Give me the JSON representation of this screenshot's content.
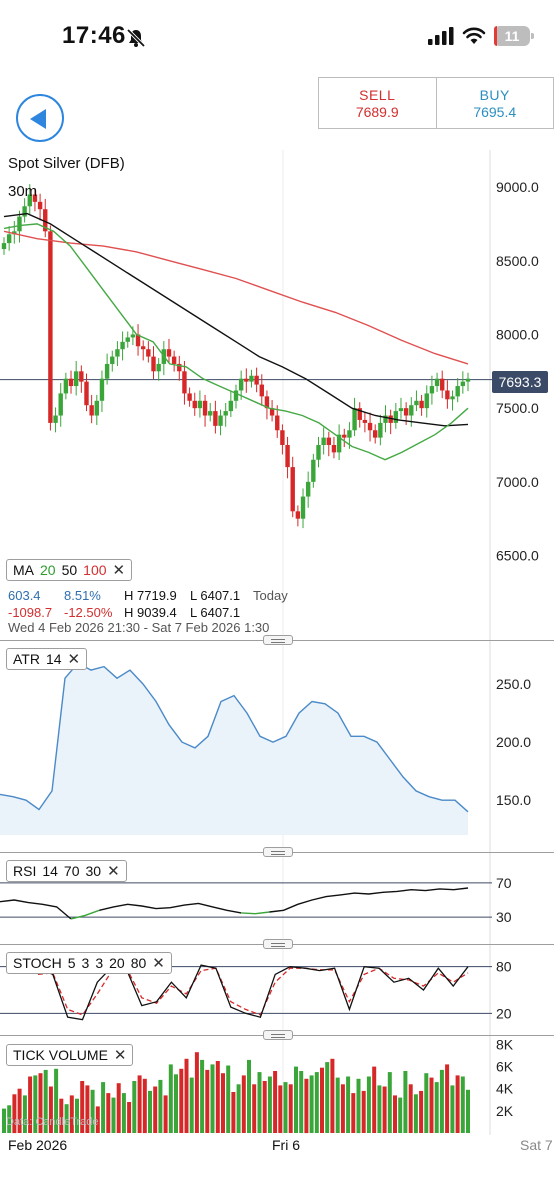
{
  "status_bar": {
    "time": "17:46",
    "battery": "11"
  },
  "trade": {
    "sell_label": "SELL",
    "sell_price": "7689.9",
    "buy_label": "BUY",
    "buy_price": "7695.4"
  },
  "instrument": {
    "name": "Spot Silver (DFB)",
    "timeframe": "30m"
  },
  "ma_legend": {
    "label": "MA",
    "p1": "20",
    "p2": "50",
    "p3": "100"
  },
  "stats": {
    "change": "603.4",
    "change_pct": "8.51%",
    "high_today": "H 7719.9",
    "low_today": "L 6407.1",
    "today": "Today",
    "change2": "-1098.7",
    "change2_pct": "-12.50%",
    "high_range": "H 9039.4",
    "low_range": "L 6407.1"
  },
  "range": "Wed 4 Feb 2026 21:30 - Sat 7 Feb 2026 1:30",
  "current_price": "7693.3",
  "x_labels": [
    "Feb 2026",
    "Fri 6",
    "Sat 7"
  ],
  "watermark": "Data: CandleTrade",
  "colors": {
    "up": "#3aa63a",
    "down": "#d62828",
    "ma20": "#44a944",
    "ma50": "#111111",
    "ma100": "#e05050",
    "atr": "#4a8ac8",
    "tick_price": "#3b4a66"
  },
  "chart_data": [
    {
      "type": "candlestick",
      "ylim": [
        6300,
        9150
      ],
      "yticks": [
        "9000.0",
        "8500.0",
        "8000.0",
        "7500.0",
        "7000.0",
        "6500.0"
      ],
      "ytick_values": [
        9000,
        8500,
        8000,
        7500,
        7000,
        6500
      ],
      "current": 7693.3,
      "close": [
        8620,
        8680,
        8700,
        8800,
        8870,
        8950,
        8900,
        8850,
        8700,
        7400,
        7450,
        7600,
        7700,
        7650,
        7750,
        7680,
        7520,
        7450,
        7550,
        7700,
        7800,
        7850,
        7900,
        7950,
        7980,
        8000,
        7920,
        7900,
        7850,
        7750,
        7800,
        7900,
        7850,
        7800,
        7750,
        7600,
        7550,
        7500,
        7550,
        7450,
        7480,
        7380,
        7450,
        7480,
        7550,
        7620,
        7700,
        7680,
        7720,
        7660,
        7580,
        7500,
        7450,
        7350,
        7250,
        7100,
        6800,
        6750,
        6900,
        7000,
        7150,
        7250,
        7300,
        7250,
        7200,
        7320,
        7300,
        7350,
        7500,
        7420,
        7400,
        7350,
        7300,
        7400,
        7450,
        7400,
        7480,
        7500,
        7450,
        7520,
        7550,
        7500,
        7600,
        7650,
        7700,
        7620,
        7560,
        7580,
        7650,
        7680,
        7700
      ],
      "ma20": [
        8720,
        8740,
        8750,
        8700,
        8600,
        8450,
        8300,
        8150,
        8000,
        7950,
        7800,
        7780,
        7700,
        7650,
        7600,
        7550,
        7500,
        7480,
        7450,
        7400,
        7320,
        7240,
        7200,
        7150,
        7200,
        7260,
        7320,
        7400,
        7500
      ],
      "ma50": [
        8800,
        8820,
        8750,
        8650,
        8550,
        8450,
        8350,
        8250,
        8150,
        8050,
        7950,
        7850,
        7780,
        7700,
        7600,
        7500,
        7450,
        7420,
        7400,
        7380,
        7390
      ],
      "ma100": [
        8700,
        8650,
        8620,
        8600,
        8560,
        8500,
        8440,
        8380,
        8300,
        8220,
        8150,
        8060,
        7960,
        7870,
        7800
      ],
      "ma_labels": [
        "20",
        "50",
        "100"
      ]
    },
    {
      "type": "area",
      "name": "ATR",
      "period": "14",
      "ylim": [
        120,
        275
      ],
      "yticks": [
        "250.0",
        "200.0",
        "150.0"
      ],
      "ytick_values": [
        250,
        200,
        150
      ],
      "values": [
        155,
        153,
        150,
        142,
        158,
        255,
        268,
        262,
        265,
        255,
        262,
        250,
        235,
        215,
        200,
        195,
        205,
        235,
        240,
        225,
        205,
        200,
        205,
        225,
        235,
        233,
        225,
        205,
        205,
        200,
        185,
        170,
        158,
        153,
        150,
        150,
        140
      ]
    },
    {
      "type": "line",
      "name": "RSI",
      "params": [
        "14",
        "70",
        "30"
      ],
      "ylim": [
        15,
        85
      ],
      "yticks": [
        "70",
        "30"
      ],
      "ytick_values": [
        70,
        30
      ],
      "values": [
        48,
        50,
        47,
        45,
        42,
        28,
        32,
        38,
        42,
        45,
        43,
        40,
        41,
        44,
        46,
        42,
        38,
        35,
        34,
        36,
        38,
        45,
        50,
        54,
        56,
        58,
        57,
        59,
        60,
        62,
        61,
        63,
        62,
        64
      ]
    },
    {
      "type": "line",
      "name": "STOCH",
      "params": [
        "5",
        "3",
        "3",
        "20",
        "80"
      ],
      "ylim": [
        5,
        95
      ],
      "yticks": [
        "80",
        "20"
      ],
      "ytick_values": [
        80,
        20
      ],
      "k": [
        78,
        70,
        15,
        12,
        60,
        80,
        75,
        30,
        35,
        60,
        40,
        82,
        78,
        28,
        20,
        15,
        70,
        80,
        78,
        75,
        78,
        25,
        80,
        78,
        60,
        65,
        50,
        78,
        55,
        80
      ],
      "d": [
        70,
        72,
        25,
        18,
        45,
        75,
        77,
        40,
        33,
        55,
        45,
        75,
        78,
        35,
        25,
        18,
        60,
        78,
        78,
        76,
        76,
        35,
        70,
        78,
        65,
        63,
        55,
        72,
        60,
        72
      ]
    },
    {
      "type": "bar",
      "name": "TICK VOLUME",
      "ylim": [
        0,
        8400
      ],
      "yticks": [
        "8K",
        "6K",
        "4K",
        "2K"
      ],
      "ytick_values": [
        8000,
        6000,
        4000,
        2000
      ],
      "values": [
        2200,
        2500,
        3500,
        4000,
        3400,
        5100,
        5200,
        5400,
        5700,
        4200,
        5800,
        3100,
        2600,
        3400,
        3100,
        4700,
        4300,
        3900,
        2400,
        4600,
        3600,
        3200,
        4500,
        3600,
        2800,
        4700,
        5200,
        4900,
        3800,
        4200,
        4800,
        3400,
        6200,
        5300,
        5800,
        6700,
        5000,
        7300,
        6600,
        5700,
        6200,
        6500,
        5400,
        6100,
        3700,
        4400,
        5200,
        6600,
        4400,
        5500,
        4700,
        5100,
        5600,
        4300,
        4600,
        4400,
        6000,
        5600,
        4900,
        5200,
        5500,
        5900,
        6400,
        6700,
        5000,
        4400,
        5100,
        3600,
        4900,
        3800,
        5100,
        6000,
        4300,
        4200,
        5500,
        3400,
        3200,
        5600,
        4400,
        3500,
        3800,
        5400,
        5000,
        4600,
        5700,
        6200,
        4300,
        5200,
        5100,
        3900
      ],
      "up": [
        1,
        1,
        0,
        0,
        1,
        0,
        1,
        0,
        1,
        0,
        1,
        0,
        1,
        0,
        1,
        0,
        0,
        1,
        0,
        1,
        0,
        1,
        0,
        1,
        0,
        1,
        0,
        0,
        1,
        0,
        1,
        0,
        1,
        1,
        0,
        0,
        1,
        0,
        1,
        0,
        1,
        0,
        0,
        1,
        0,
        1,
        0,
        1,
        0,
        1,
        0,
        1,
        0,
        0,
        1,
        0,
        1,
        1,
        0,
        1,
        1,
        0,
        1,
        0,
        1,
        0,
        1,
        0,
        1,
        0,
        1,
        0,
        1,
        0,
        1,
        0,
        1,
        1,
        0,
        1,
        0,
        1,
        0,
        1,
        1,
        0,
        1,
        0,
        1,
        1
      ]
    }
  ]
}
